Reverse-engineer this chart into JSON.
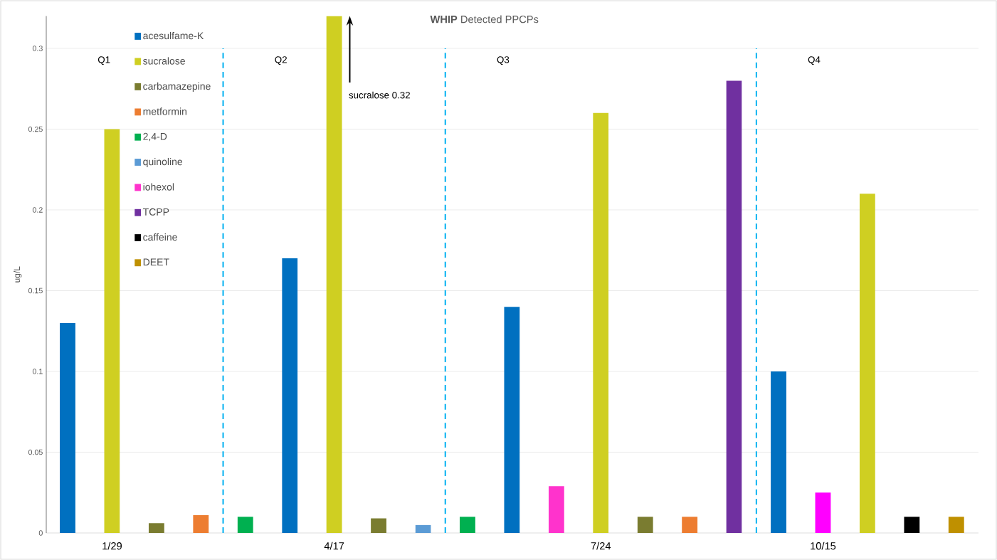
{
  "chart_data": {
    "type": "bar",
    "title": "**WHIP**    Detected PPCPs",
    "ylabel": "ug/L",
    "categories": [
      null,
      "1/29",
      null,
      null,
      null,
      null,
      "4/17",
      null,
      null,
      null,
      null,
      null,
      "7/24",
      null,
      null,
      null,
      null,
      "10/15",
      null,
      null,
      null
    ],
    "series": [
      {
        "name": "acesulfame-K",
        "color": "#0070c0",
        "values": [
          0.13,
          null,
          null,
          null,
          null,
          0.17,
          null,
          null,
          null,
          null,
          0.14,
          null,
          null,
          null,
          null,
          null,
          0.1,
          null,
          null,
          null,
          null
        ]
      },
      {
        "name": "sucralose",
        "color": "#cfcf22",
        "values": [
          null,
          0.25,
          null,
          null,
          null,
          null,
          0.32,
          null,
          null,
          null,
          null,
          null,
          0.26,
          null,
          null,
          null,
          null,
          null,
          0.21,
          null,
          null
        ]
      },
      {
        "name": "carbamazepine",
        "color": "#7a7c30",
        "values": [
          null,
          null,
          0.006,
          null,
          null,
          null,
          null,
          0.009,
          null,
          null,
          null,
          null,
          null,
          0.01,
          null,
          null,
          null,
          null,
          null,
          null,
          null
        ]
      },
      {
        "name": "metformin",
        "color": "#ed7d31",
        "values": [
          null,
          null,
          null,
          0.011,
          null,
          null,
          null,
          null,
          null,
          null,
          null,
          null,
          null,
          null,
          0.01,
          null,
          null,
          null,
          null,
          null,
          null
        ]
      },
      {
        "name": "2,4-D",
        "color": "#00b050",
        "values": [
          null,
          null,
          null,
          null,
          0.01,
          null,
          null,
          null,
          null,
          0.01,
          null,
          null,
          null,
          null,
          null,
          null,
          null,
          null,
          null,
          null,
          null
        ]
      },
      {
        "name": "quinoline",
        "color": "#5b9bd5",
        "values": [
          null,
          null,
          null,
          null,
          null,
          null,
          null,
          null,
          0.005,
          null,
          null,
          null,
          null,
          null,
          null,
          null,
          null,
          null,
          null,
          null,
          null
        ]
      },
      {
        "name": "iohexol",
        "color": "#ff33cc",
        "colors": [
          null,
          null,
          null,
          null,
          null,
          null,
          null,
          null,
          null,
          null,
          null,
          "#ff33cc",
          null,
          null,
          null,
          null,
          null,
          "#ff00ff",
          null,
          null,
          null
        ],
        "values": [
          null,
          null,
          null,
          null,
          null,
          null,
          null,
          null,
          null,
          null,
          null,
          0.029,
          null,
          null,
          null,
          null,
          null,
          0.025,
          null,
          null,
          null
        ]
      },
      {
        "name": "TCPP",
        "color": "#7030a0",
        "values": [
          null,
          null,
          null,
          null,
          null,
          null,
          null,
          null,
          null,
          null,
          null,
          null,
          null,
          null,
          null,
          0.28,
          null,
          null,
          null,
          null,
          null
        ]
      },
      {
        "name": "caffeine",
        "color": "#000000",
        "values": [
          null,
          null,
          null,
          null,
          null,
          null,
          null,
          null,
          null,
          null,
          null,
          null,
          null,
          null,
          null,
          null,
          null,
          null,
          null,
          0.01,
          null
        ]
      },
      {
        "name": "DEET",
        "color": "#bf9000",
        "values": [
          null,
          null,
          null,
          null,
          null,
          null,
          null,
          null,
          null,
          null,
          null,
          null,
          null,
          null,
          null,
          null,
          null,
          null,
          null,
          null,
          0.01
        ]
      }
    ],
    "ylim": [
      0,
      0.32
    ],
    "yticks": [
      0,
      0.05,
      0.1,
      0.15,
      0.2,
      0.25,
      0.3
    ],
    "grid": "y",
    "legend": "top left",
    "annotations": [
      "Q1",
      "Q2",
      "Q3",
      "Q4",
      "sucralose 0.32"
    ]
  }
}
